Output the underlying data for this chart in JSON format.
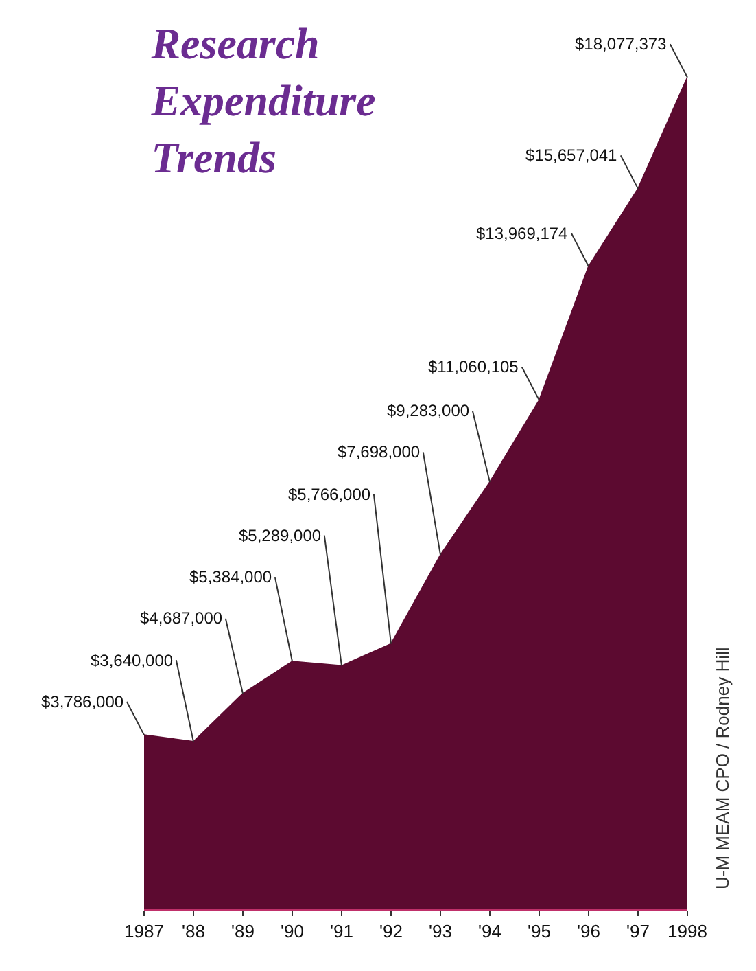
{
  "chart_data": {
    "type": "area",
    "title": "Research Expenditure Trends",
    "categories": [
      "1987",
      "'88",
      "'89",
      "'90",
      "'91",
      "'92",
      "'93",
      "'94",
      "'95",
      "'96",
      "'97",
      "1998"
    ],
    "series": [
      {
        "color": "#5c0a30",
        "values": [
          3786000,
          3640000,
          4687000,
          5384000,
          5289000,
          5766000,
          7698000,
          9283000,
          11060105,
          13969174,
          15657041,
          18077373
        ],
        "value_labels": [
          "$3,786,000",
          "$3,640,000",
          "$4,687,000",
          "$5,384,000",
          "$5,289,000",
          "$5,766,000",
          "$7,698,000",
          "$9,283,000",
          "$11,060,105",
          "$13,969,174",
          "$15,657,041",
          "$18,077,373"
        ]
      }
    ],
    "annotations": [
      "U-M MEAM CPO / Rodney Hill"
    ],
    "grid": false
  }
}
